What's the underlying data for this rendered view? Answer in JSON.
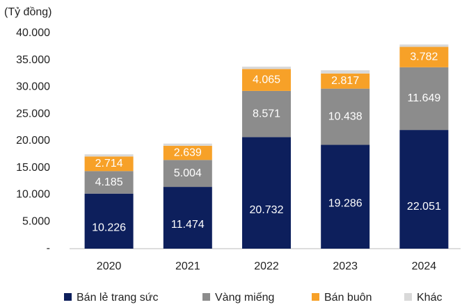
{
  "chart_data": {
    "type": "stacked_bar",
    "y_axis_title": "(Tỷ đồng)",
    "categories": [
      "2020",
      "2021",
      "2022",
      "2023",
      "2024"
    ],
    "series": [
      {
        "name": "Bán lẻ trang sức",
        "color": "#0d1f5c",
        "values": [
          10226,
          11474,
          20732,
          19286,
          22051
        ],
        "value_labels": [
          "10.226",
          "11.474",
          "20.732",
          "19.286",
          "22.051"
        ]
      },
      {
        "name": "Vàng miếng",
        "color": "#8c8c8c",
        "values": [
          4185,
          5004,
          8571,
          10438,
          11649
        ],
        "value_labels": [
          "4.185",
          "5.004",
          "8.571",
          "10.438",
          "11.649"
        ]
      },
      {
        "name": "Bán buôn",
        "color": "#f7a128",
        "values": [
          2714,
          2639,
          4065,
          2817,
          3782
        ],
        "value_labels": [
          "2.714",
          "2.639",
          "4.065",
          "2.817",
          "3.782"
        ]
      },
      {
        "name": "Khác",
        "color": "#d9d9d9",
        "values": [
          400,
          400,
          450,
          600,
          450
        ]
      }
    ],
    "ylim": [
      0,
      40000
    ],
    "yticks": [
      {
        "value": 0,
        "label": "-"
      },
      {
        "value": 5000,
        "label": "5.000"
      },
      {
        "value": 10000,
        "label": "10.000"
      },
      {
        "value": 15000,
        "label": "15.000"
      },
      {
        "value": 20000,
        "label": "20.000"
      },
      {
        "value": 25000,
        "label": "25.000"
      },
      {
        "value": 30000,
        "label": "30.000"
      },
      {
        "value": 35000,
        "label": "35.000"
      },
      {
        "value": 40000,
        "label": "40.000"
      }
    ],
    "legend": "bottom"
  }
}
